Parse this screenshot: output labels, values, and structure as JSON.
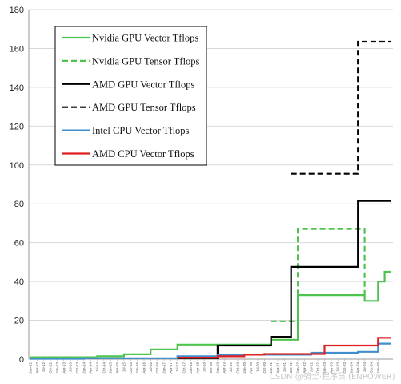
{
  "chart_data": {
    "type": "line",
    "title": "",
    "xlabel": "",
    "ylabel": "",
    "ylim": [
      0,
      180
    ],
    "yticks": [
      0,
      20,
      40,
      60,
      80,
      100,
      120,
      140,
      160,
      180
    ],
    "grid": true,
    "legend_placement": "top-left",
    "x_tick_labels": [
      "Jan-12",
      "Apr-12",
      "Jul-12",
      "Oct-12",
      "Jan-13",
      "Apr-13",
      "Jul-13",
      "Oct-13",
      "Jan-14",
      "Apr-14",
      "Jul-14",
      "Oct-14",
      "Jan-15",
      "Apr-15",
      "Jul-15",
      "Oct-15",
      "Jan-16",
      "Apr-16",
      "Jul-16",
      "Oct-16",
      "Jan-17",
      "Apr-17",
      "Jul-17",
      "Oct-17",
      "Jan-18",
      "Apr-18",
      "Jul-18",
      "Oct-18",
      "Jan-19",
      "Apr-19",
      "Jul-19",
      "Oct-19",
      "Jan-20",
      "Apr-20",
      "Jul-20",
      "Oct-20",
      "Jan-21",
      "Apr-21",
      "Jul-21",
      "Oct-21",
      "Jan-22",
      "Apr-22",
      "Jul-22",
      "Oct-22",
      "Jan-23",
      "Apr-23",
      "Jul-23",
      "Oct-23",
      "Jan-24",
      "Apr-24",
      "Jul-24",
      "Oct-24",
      "Jan-25"
    ],
    "series": [
      {
        "name": "Nvidia GPU Vector Tflops",
        "color": "#4ec34e",
        "dash": "solid",
        "points": [
          [
            "Jan-12",
            1
          ],
          [
            "Jul-14",
            1
          ],
          [
            "Jul-14",
            1.5
          ],
          [
            "Jul-15",
            1.5
          ],
          [
            "Jul-15",
            2.5
          ],
          [
            "Jul-16",
            2.5
          ],
          [
            "Jul-16",
            5
          ],
          [
            "Jul-17",
            5
          ],
          [
            "Jul-17",
            7.5
          ],
          [
            "Jan-21",
            7.5
          ],
          [
            "Jan-21",
            10
          ],
          [
            "Jan-22",
            10
          ],
          [
            "Jan-22",
            33
          ],
          [
            "Jul-24",
            33
          ],
          [
            "Jul-24",
            30
          ],
          [
            "Jan-25",
            30
          ],
          [
            "Jan-25",
            40
          ],
          [
            "Apr-25",
            40
          ],
          [
            "Apr-25",
            45
          ],
          [
            "Jul-25",
            45
          ]
        ]
      },
      {
        "name": "Nvidia GPU Tensor Tflops",
        "color": "#4ec34e",
        "dash": "dashed",
        "points": [
          [
            "Jan-21",
            19.5
          ],
          [
            "Jan-22",
            19.5
          ],
          [
            "Jan-22",
            67
          ],
          [
            "Jul-24",
            67
          ],
          [
            "Jul-24",
            33
          ]
        ]
      },
      {
        "name": "AMD GPU Vector Tflops",
        "color": "#000000",
        "dash": "solid",
        "points": [
          [
            "Jul-17",
            0.5
          ],
          [
            "Jan-19",
            0.5
          ],
          [
            "Jan-19",
            7
          ],
          [
            "Jan-21",
            7
          ],
          [
            "Jan-21",
            11.5
          ],
          [
            "Oct-21",
            11.5
          ],
          [
            "Oct-21",
            47.5
          ],
          [
            "Apr-24",
            47.5
          ],
          [
            "Apr-24",
            81.5
          ],
          [
            "Jul-25",
            81.5
          ]
        ]
      },
      {
        "name": "AMD GPU Tensor Tflops",
        "color": "#000000",
        "dash": "dashed",
        "points": [
          [
            "Oct-21",
            95.5
          ],
          [
            "Apr-24",
            95.5
          ],
          [
            "Apr-24",
            163.5
          ],
          [
            "Jul-25",
            163.5
          ]
        ]
      },
      {
        "name": "Intel CPU Vector Tflops",
        "color": "#3f8fcf",
        "dash": "solid",
        "points": [
          [
            "Jan-12",
            0.2
          ],
          [
            "Jan-14",
            0.2
          ],
          [
            "Jan-14",
            0.5
          ],
          [
            "Jul-17",
            0.5
          ],
          [
            "Jul-17",
            1.5
          ],
          [
            "Jan-19",
            1.5
          ],
          [
            "Jan-19",
            2.3
          ],
          [
            "Jul-22",
            2.3
          ],
          [
            "Jul-22",
            3.3
          ],
          [
            "Apr-24",
            3.3
          ],
          [
            "Apr-24",
            3.8
          ],
          [
            "Jan-25",
            3.8
          ],
          [
            "Jan-25",
            8
          ],
          [
            "Jul-25",
            8
          ]
        ]
      },
      {
        "name": "AMD CPU Vector Tflops",
        "color": "#e02020",
        "dash": "solid",
        "points": [
          [
            "Jul-17",
            0.8
          ],
          [
            "Jan-19",
            0.8
          ],
          [
            "Jan-19",
            1.5
          ],
          [
            "Jan-20",
            1.5
          ],
          [
            "Jan-20",
            2.3
          ],
          [
            "Oct-20",
            2.3
          ],
          [
            "Oct-20",
            2.7
          ],
          [
            "Jan-23",
            2.7
          ],
          [
            "Jan-23",
            7
          ],
          [
            "Jan-25",
            7
          ],
          [
            "Jan-25",
            11
          ],
          [
            "Jul-25",
            11
          ]
        ]
      }
    ]
  },
  "watermark": "CSDN @骑士·程序员 (ENPOWER)"
}
